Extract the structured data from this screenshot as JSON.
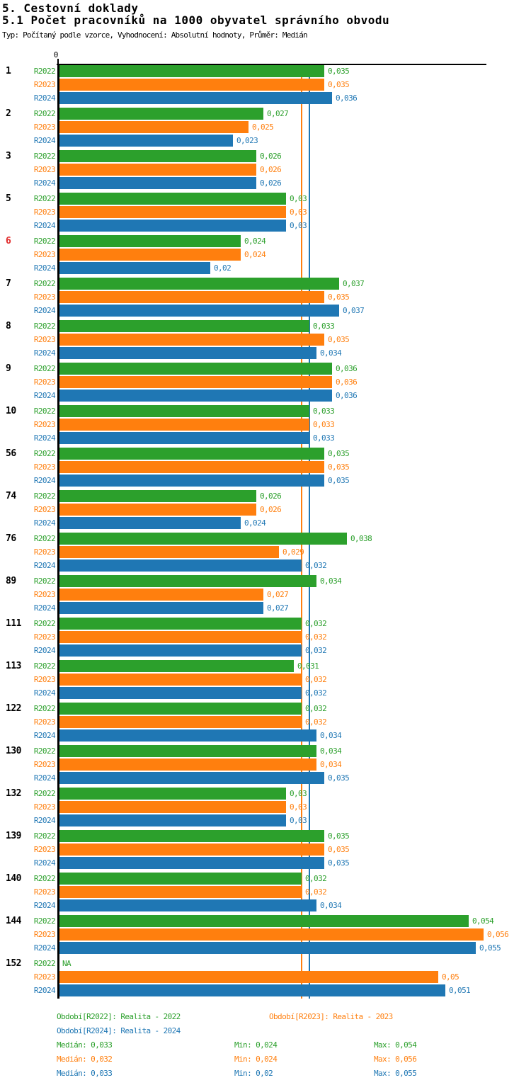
{
  "header": {
    "title1": "5. Cestovní doklady",
    "title2": "5.1 Počet pracovníků na 1000 obyvatel správního obvodu",
    "subtitle": "Typ: Počítaný podle vzorce, Vyhodnocení: Absolutní hodnoty, Průměr: Medián"
  },
  "colors": {
    "series_green": "#2ca02c",
    "series_orange": "#ff7f0e",
    "series_blue": "#1f77b4",
    "highlight_label_red": "#e12929",
    "axis": "#000000"
  },
  "chart_data": {
    "type": "bar",
    "orientation": "horizontal",
    "title": "5.1 Počet pracovníků na 1000 obyvatel správního obvodu",
    "axis_origin_label": "0",
    "xlim": [
      0,
      0.056
    ],
    "grid": false,
    "series_labels": [
      "R2022",
      "R2023",
      "R2024"
    ],
    "series_colors": [
      "#2ca02c",
      "#ff7f0e",
      "#1f77b4"
    ],
    "median_lines": [
      {
        "series": "R2022",
        "value": 0.033,
        "color": "#2ca02c"
      },
      {
        "series": "R2023",
        "value": 0.032,
        "color": "#ff7f0e"
      },
      {
        "series": "R2024",
        "value": 0.033,
        "color": "#1f77b4"
      }
    ],
    "na_text": "NA",
    "groups": [
      {
        "label": "1",
        "highlight": false,
        "values": [
          0.035,
          0.035,
          0.036
        ],
        "display": [
          "0,035",
          "0,035",
          "0,036"
        ]
      },
      {
        "label": "2",
        "highlight": false,
        "values": [
          0.027,
          0.025,
          0.023
        ],
        "display": [
          "0,027",
          "0,025",
          "0,023"
        ]
      },
      {
        "label": "3",
        "highlight": false,
        "values": [
          0.026,
          0.026,
          0.026
        ],
        "display": [
          "0,026",
          "0,026",
          "0,026"
        ]
      },
      {
        "label": "5",
        "highlight": false,
        "values": [
          0.03,
          0.03,
          0.03
        ],
        "display": [
          "0,03",
          "0,03",
          "0,03"
        ]
      },
      {
        "label": "6",
        "highlight": true,
        "values": [
          0.024,
          0.024,
          0.02
        ],
        "display": [
          "0,024",
          "0,024",
          "0,02"
        ]
      },
      {
        "label": "7",
        "highlight": false,
        "values": [
          0.037,
          0.035,
          0.037
        ],
        "display": [
          "0,037",
          "0,035",
          "0,037"
        ]
      },
      {
        "label": "8",
        "highlight": false,
        "values": [
          0.033,
          0.035,
          0.034
        ],
        "display": [
          "0,033",
          "0,035",
          "0,034"
        ]
      },
      {
        "label": "9",
        "highlight": false,
        "values": [
          0.036,
          0.036,
          0.036
        ],
        "display": [
          "0,036",
          "0,036",
          "0,036"
        ]
      },
      {
        "label": "10",
        "highlight": false,
        "values": [
          0.033,
          0.033,
          0.033
        ],
        "display": [
          "0,033",
          "0,033",
          "0,033"
        ]
      },
      {
        "label": "56",
        "highlight": false,
        "values": [
          0.035,
          0.035,
          0.035
        ],
        "display": [
          "0,035",
          "0,035",
          "0,035"
        ]
      },
      {
        "label": "74",
        "highlight": false,
        "values": [
          0.026,
          0.026,
          0.024
        ],
        "display": [
          "0,026",
          "0,026",
          "0,024"
        ]
      },
      {
        "label": "76",
        "highlight": false,
        "values": [
          0.038,
          0.029,
          0.032
        ],
        "display": [
          "0,038",
          "0,029",
          "0,032"
        ]
      },
      {
        "label": "89",
        "highlight": false,
        "values": [
          0.034,
          0.027,
          0.027
        ],
        "display": [
          "0,034",
          "0,027",
          "0,027"
        ]
      },
      {
        "label": "111",
        "highlight": false,
        "values": [
          0.032,
          0.032,
          0.032
        ],
        "display": [
          "0,032",
          "0,032",
          "0,032"
        ]
      },
      {
        "label": "113",
        "highlight": false,
        "values": [
          0.031,
          0.032,
          0.032
        ],
        "display": [
          "0,031",
          "0,032",
          "0,032"
        ]
      },
      {
        "label": "122",
        "highlight": false,
        "values": [
          0.032,
          0.032,
          0.034
        ],
        "display": [
          "0,032",
          "0,032",
          "0,034"
        ]
      },
      {
        "label": "130",
        "highlight": false,
        "values": [
          0.034,
          0.034,
          0.035
        ],
        "display": [
          "0,034",
          "0,034",
          "0,035"
        ]
      },
      {
        "label": "132",
        "highlight": false,
        "values": [
          0.03,
          0.03,
          0.03
        ],
        "display": [
          "0,03",
          "0,03",
          "0,03"
        ]
      },
      {
        "label": "139",
        "highlight": false,
        "values": [
          0.035,
          0.035,
          0.035
        ],
        "display": [
          "0,035",
          "0,035",
          "0,035"
        ]
      },
      {
        "label": "140",
        "highlight": false,
        "values": [
          0.032,
          0.032,
          0.034
        ],
        "display": [
          "0,032",
          "0,032",
          "0,034"
        ]
      },
      {
        "label": "144",
        "highlight": false,
        "values": [
          0.054,
          0.056,
          0.055
        ],
        "display": [
          "0,054",
          "0,056",
          "0,055"
        ]
      },
      {
        "label": "152",
        "highlight": false,
        "values": [
          null,
          0.05,
          0.051
        ],
        "display": [
          "NA",
          "0,05",
          "0,051"
        ]
      }
    ]
  },
  "legend": {
    "period_2022": "Období[R2022]: Realita - 2022",
    "period_2023": "Období[R2023]: Realita - 2023",
    "period_2024": "Období[R2024]: Realita - 2024"
  },
  "stats": {
    "rows": [
      {
        "series": "R2022",
        "median": "Medián: 0,033",
        "min": "Min: 0,024",
        "max": "Max: 0,054",
        "color": "green"
      },
      {
        "series": "R2023",
        "median": "Medián: 0,032",
        "min": "Min: 0,024",
        "max": "Max: 0,056",
        "color": "orange"
      },
      {
        "series": "R2024",
        "median": "Medián: 0,033",
        "min": "Min: 0,02",
        "max": "Max: 0,055",
        "color": "blue"
      }
    ]
  }
}
